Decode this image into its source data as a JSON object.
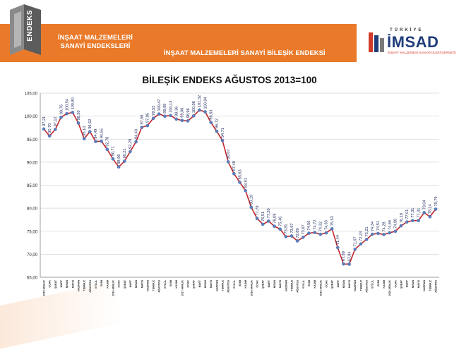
{
  "header": {
    "logo_label": "ENDEKS",
    "company_line1": "İNŞAAT MALZEMELERİ",
    "company_line2": "SANAYİ ENDEKSLERİ",
    "subtitle": "İNŞAAT MALZEMELERİ SANAYİ BİLEŞİK ENDEKSİ",
    "imsad_top": "TÜRKİYE",
    "imsad_name": "İMSAD",
    "imsad_sub": "İNŞAAT MALZEMESİ SANAYİCİLERİ DERNEĞİ",
    "band_color": "#ea7a2a"
  },
  "chart_data": {
    "type": "line",
    "title": "BİLEŞİK ENDEKS AĞUSTOS 2013=100",
    "ylim": [
      65,
      105
    ],
    "yticks": [
      "65,00",
      "70,00",
      "75,00",
      "80,00",
      "85,00",
      "90,00",
      "95,00",
      "100,00",
      "105,00"
    ],
    "grid": true,
    "line_color": "#c0262c",
    "marker_color": "#5b7fbf",
    "x": [
      "2015 ARALIK",
      "OCAK",
      "ŞUBAT",
      "MART",
      "NİSAN",
      "MAYIS",
      "HAZİRAN",
      "TEMMUZ",
      "AĞUSTOS",
      "EYLÜL",
      "EKİM",
      "KASIM",
      "2016 ARALIK",
      "OCAK",
      "ŞUBAT",
      "MART",
      "NİSAN",
      "MAYIS",
      "HAZİRAN",
      "TEMMUZ",
      "AĞUSTOS",
      "EYLÜL",
      "EKİM",
      "KASIM",
      "2017 ARALIK",
      "OCAK",
      "ŞUBAT",
      "MART",
      "NİSAN",
      "MAYIS",
      "HAZİRAN",
      "TEMMUZ",
      "AĞUSTOS",
      "EYLÜL",
      "EKİM",
      "KASIM",
      "2018 ARALIK",
      "OCAK",
      "ŞUBAT",
      "MART",
      "NİSAN",
      "MAYIS",
      "HAZİRAN",
      "TEMMUZ",
      "AĞUSTOS",
      "EYLÜL",
      "EKİM",
      "KASIM",
      "2019 ARALIK",
      "OCAK",
      "ŞUBAT",
      "MART",
      "NİSAN",
      "MAYIS",
      "HAZİRAN",
      "TEMMUZ",
      "AĞUSTOS",
      "EYLÜL",
      "EKİM",
      "KASIM",
      "2020 ARALIK",
      "OCAK",
      "ŞUBAT",
      "MART",
      "NİSAN",
      "MAYIS",
      "HAZİRAN",
      "TEMMUZ",
      "AĞUSTOS"
    ],
    "values": [
      97.21,
      95.7,
      97.12,
      99.76,
      100.54,
      100.8,
      98.5,
      95.1,
      96.62,
      94.49,
      94.55,
      92.78,
      90.71,
      88.96,
      90.21,
      92.29,
      94.43,
      97.56,
      97.95,
      99.53,
      100.47,
      99.99,
      100.13,
      99.36,
      99.06,
      98.96,
      100.06,
      101.32,
      100.94,
      98.63,
      96.72,
      94.71,
      90.07,
      87.49,
      85.63,
      83.81,
      80.19,
      77.79,
      76.51,
      77.2,
      76.09,
      75.46,
      73.81,
      73.97,
      72.89,
      73.67,
      74.56,
      74.72,
      74.32,
      74.63,
      75.53,
      71.44,
      67.89,
      67.84,
      71.07,
      72.23,
      73.21,
      74.34,
      74.51,
      74.28,
      74.66,
      74.98,
      76.18,
      77.01,
      77.31,
      77.31,
      79.04,
      78.14,
      79.79
    ],
    "data_labels": [
      "97,21",
      "95,70",
      "97,12",
      "99,76",
      "100,54",
      "100,80",
      "98,50",
      "95,10",
      "96,62",
      "94,49",
      "94,55",
      "92,78",
      "90,71",
      "88,96",
      "90,21",
      "92,29",
      "94,43",
      "97,56",
      "97,95",
      "99,53",
      "100,47",
      "99,99",
      "100,13",
      "99,36",
      "99,06",
      "98,96",
      "100,06",
      "101,32",
      "100,94",
      "98,63",
      "96,72",
      "94,71",
      "90,07",
      "87,49",
      "85,63",
      "83,81",
      "80,19",
      "77,79",
      "76,51",
      "77,20",
      "76,09",
      "75,46",
      "73,81",
      "73,97",
      "72,89",
      "73,67",
      "74,56",
      "74,72",
      "74,32",
      "74,63",
      "75,53",
      "71,44",
      "67,89",
      "67,84",
      "71,07",
      "72,23",
      "73,21",
      "74,34",
      "74,51",
      "74,28",
      "74,66",
      "74,98",
      "76,18",
      "77,01",
      "77,31",
      "77,31",
      "79,04",
      "78,14",
      "79,79"
    ]
  }
}
